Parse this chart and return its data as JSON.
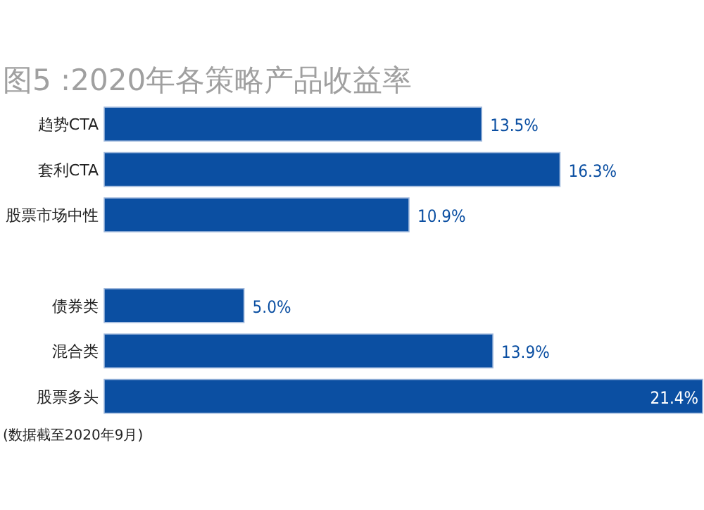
{
  "chart_data": {
    "type": "bar",
    "orientation": "horizontal",
    "title": "图5 :2020年各策略产品收益率",
    "categories": [
      "趋势CTA",
      "套利CTA",
      "股票市场中性",
      null,
      "债券类",
      "混合类",
      "股票多头"
    ],
    "values": [
      13.5,
      16.3,
      10.9,
      null,
      5.0,
      13.9,
      21.4
    ],
    "value_labels": [
      "13.5%",
      "16.3%",
      "10.9%",
      null,
      "5.0%",
      "13.9%",
      "21.4%"
    ],
    "color": "#0b4fa2",
    "annotations": [
      "(数据截至2020年9月)"
    ]
  }
}
